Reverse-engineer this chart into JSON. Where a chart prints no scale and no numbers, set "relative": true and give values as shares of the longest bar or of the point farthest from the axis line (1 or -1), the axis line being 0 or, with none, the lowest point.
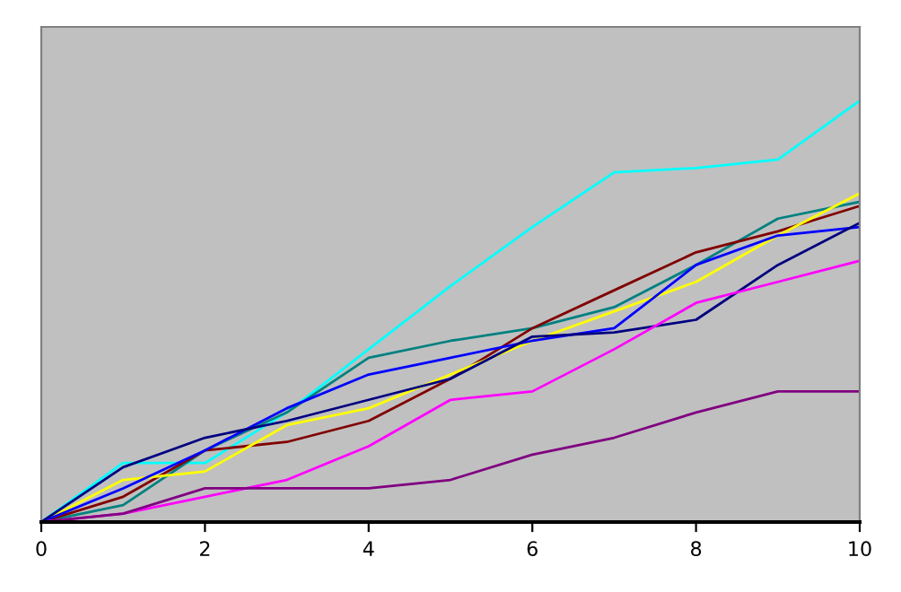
{
  "chart_data": {
    "type": "line",
    "relative": true,
    "x": [
      0,
      1,
      2,
      3,
      4,
      5,
      6,
      7,
      8,
      9,
      10
    ],
    "xlim": [
      0,
      10
    ],
    "xticks": [
      0,
      2,
      4,
      6,
      8,
      10
    ],
    "grid": false,
    "legend": false,
    "tick_labels": "x",
    "series": [
      {
        "color": "#00ffff",
        "values": [
          0,
          0.14,
          0.14,
          0.26,
          0.41,
          0.56,
          0.7,
          0.83,
          0.84,
          0.86,
          1
        ]
      },
      {
        "color": "#008080",
        "values": [
          0,
          0.04,
          0.17,
          0.26,
          0.39,
          0.43,
          0.46,
          0.51,
          0.61,
          0.72,
          0.76
        ]
      },
      {
        "color": "#800000",
        "values": [
          0,
          0.06,
          0.17,
          0.19,
          0.24,
          0.34,
          0.46,
          0.55,
          0.64,
          0.69,
          0.75
        ]
      },
      {
        "color": "#ffff00",
        "values": [
          0,
          0.1,
          0.12,
          0.23,
          0.27,
          0.35,
          0.43,
          0.5,
          0.57,
          0.68,
          0.78
        ]
      },
      {
        "color": "#0000ff",
        "values": [
          0,
          0.08,
          0.17,
          0.27,
          0.35,
          0.39,
          0.43,
          0.46,
          0.61,
          0.68,
          0.7
        ]
      },
      {
        "color": "#000080",
        "values": [
          0,
          0.13,
          0.2,
          0.24,
          0.29,
          0.34,
          0.44,
          0.45,
          0.48,
          0.61,
          0.71
        ]
      },
      {
        "color": "#ff00ff",
        "values": [
          0,
          0.02,
          0.06,
          0.1,
          0.18,
          0.29,
          0.31,
          0.41,
          0.52,
          0.57,
          0.62
        ]
      },
      {
        "color": "#800080",
        "values": [
          0,
          0.02,
          0.08,
          0.08,
          0.08,
          0.1,
          0.16,
          0.2,
          0.26,
          0.31,
          0.31
        ]
      }
    ]
  }
}
